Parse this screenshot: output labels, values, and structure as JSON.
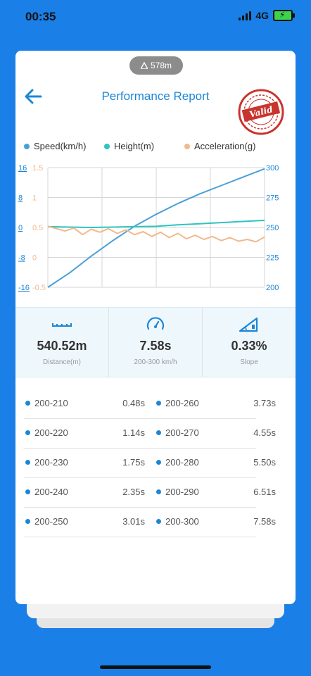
{
  "status_bar": {
    "time": "00:35",
    "network": "4G"
  },
  "header": {
    "distance_pill": "578m",
    "title": "Performance Report",
    "stamp_text": "Valid"
  },
  "legend": {
    "speed": "Speed(km/h)",
    "height": "Height(m)",
    "acceleration": "Acceleration(g)"
  },
  "colors": {
    "speed": "#4a9fd8",
    "height": "#2ec4c0",
    "acceleration": "#f2b98c",
    "accent": "#1c86d6",
    "stamp": "#c9342d"
  },
  "chart_data": {
    "type": "line",
    "left_axis_height_ticks": [
      "16",
      "8",
      "0",
      "-8",
      "-16"
    ],
    "left_axis_accel_ticks": [
      "1.5",
      "1",
      "0.5",
      "0",
      "-0.5"
    ],
    "right_axis_speed_ticks": [
      "300",
      "275",
      "250",
      "225",
      "200"
    ],
    "speed_range": [
      200,
      300
    ],
    "height_range": [
      -16,
      16
    ],
    "accel_range": [
      -0.5,
      1.5
    ],
    "grid": true,
    "series": [
      {
        "name": "Speed(km/h)",
        "axis": "right",
        "x": [
          0,
          0.1,
          0.2,
          0.3,
          0.4,
          0.5,
          0.6,
          0.7,
          0.8,
          0.9,
          1.0
        ],
        "values": [
          200,
          212,
          226,
          239,
          251,
          261,
          270,
          278,
          285,
          292,
          299
        ]
      },
      {
        "name": "Height(m)",
        "axis": "left",
        "x": [
          0,
          0.1,
          0.2,
          0.3,
          0.4,
          0.5,
          0.6,
          0.7,
          0.8,
          0.9,
          1.0
        ],
        "values": [
          0.2,
          0.1,
          0.0,
          0.1,
          0.2,
          0.3,
          0.7,
          1.0,
          1.3,
          1.6,
          1.9
        ]
      },
      {
        "name": "Acceleration(g)",
        "axis": "left",
        "x": [
          0,
          0.04,
          0.08,
          0.12,
          0.16,
          0.2,
          0.24,
          0.28,
          0.32,
          0.36,
          0.4,
          0.44,
          0.48,
          0.52,
          0.56,
          0.6,
          0.64,
          0.68,
          0.72,
          0.76,
          0.8,
          0.84,
          0.88,
          0.92,
          0.96,
          1.0
        ],
        "values": [
          0.52,
          0.48,
          0.44,
          0.49,
          0.38,
          0.47,
          0.42,
          0.48,
          0.4,
          0.46,
          0.38,
          0.43,
          0.35,
          0.42,
          0.33,
          0.4,
          0.31,
          0.37,
          0.3,
          0.35,
          0.28,
          0.33,
          0.27,
          0.3,
          0.26,
          0.34
        ]
      }
    ]
  },
  "stats": [
    {
      "icon": "ruler-icon",
      "value": "540.52m",
      "label": "Distance(m)"
    },
    {
      "icon": "speedometer-icon",
      "value": "7.58s",
      "label": "200-300 km/h"
    },
    {
      "icon": "slope-icon",
      "value": "0.33%",
      "label": "Slope"
    }
  ],
  "splits": [
    {
      "left_label": "200-210",
      "left_time": "0.48s",
      "right_label": "200-260",
      "right_time": "3.73s"
    },
    {
      "left_label": "200-220",
      "left_time": "1.14s",
      "right_label": "200-270",
      "right_time": "4.55s"
    },
    {
      "left_label": "200-230",
      "left_time": "1.75s",
      "right_label": "200-280",
      "right_time": "5.50s"
    },
    {
      "left_label": "200-240",
      "left_time": "2.35s",
      "right_label": "200-290",
      "right_time": "6.51s"
    },
    {
      "left_label": "200-250",
      "left_time": "3.01s",
      "right_label": "200-300",
      "right_time": "7.58s"
    }
  ]
}
